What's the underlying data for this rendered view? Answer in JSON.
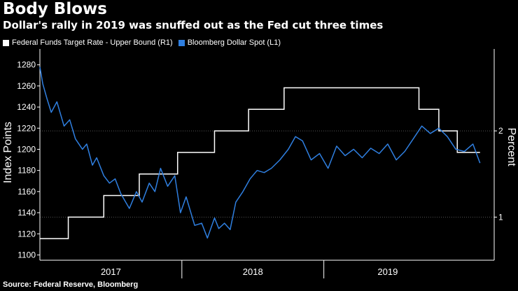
{
  "chart_data": {
    "type": "line",
    "title": "Body Blows",
    "subtitle": "Dollar's rally in 2019 was snuffed out as the Fed cut three times",
    "ylabel": "Index Points",
    "y2label": "Percent",
    "ylim": [
      1095,
      1295
    ],
    "y2lim": [
      0.5,
      2.95
    ],
    "yticks": [
      "1100",
      "1120",
      "1140",
      "1160",
      "1180",
      "1200",
      "1220",
      "1240",
      "1260",
      "1280"
    ],
    "y2ticks": [
      "1",
      "2"
    ],
    "x_start": 2016.75,
    "x_end": 2019.95,
    "xticks": [
      {
        "label": "2017",
        "pos": 2017.25
      },
      {
        "label": "2018",
        "pos": 2018.25
      },
      {
        "label": "2019",
        "pos": 2019.2
      }
    ],
    "year_boundaries": [
      2017.75,
      2018.75
    ],
    "series": [
      {
        "name": "Federal Funds Target Rate - Upper Bound  (R1)",
        "axis": "right",
        "color": "#ffffff",
        "step_x": [
          2016.75,
          2016.95,
          2017.2,
          2017.45,
          2017.72,
          2017.98,
          2018.22,
          2018.47,
          2018.73,
          2019.42,
          2019.56,
          2019.69,
          2019.85
        ],
        "step_y": [
          0.75,
          1.0,
          1.25,
          1.5,
          1.75,
          2.0,
          2.25,
          2.5,
          2.5,
          2.25,
          2.0,
          1.75,
          1.75
        ]
      },
      {
        "name": "Bloomberg Dollar Spot  (L1)",
        "axis": "left",
        "color": "#2f7fe0",
        "x": [
          2016.75,
          2016.77,
          2016.8,
          2016.83,
          2016.87,
          2016.92,
          2016.96,
          2017.0,
          2017.05,
          2017.08,
          2017.12,
          2017.15,
          2017.2,
          2017.24,
          2017.28,
          2017.32,
          2017.38,
          2017.43,
          2017.47,
          2017.52,
          2017.56,
          2017.6,
          2017.65,
          2017.7,
          2017.74,
          2017.78,
          2017.84,
          2017.89,
          2017.93,
          2017.98,
          2018.01,
          2018.05,
          2018.09,
          2018.13,
          2018.18,
          2018.23,
          2018.28,
          2018.33,
          2018.38,
          2018.44,
          2018.5,
          2018.55,
          2018.6,
          2018.66,
          2018.72,
          2018.78,
          2018.84,
          2018.9,
          2018.96,
          2019.02,
          2019.08,
          2019.14,
          2019.2,
          2019.26,
          2019.32,
          2019.38,
          2019.44,
          2019.5,
          2019.56,
          2019.62,
          2019.68,
          2019.74,
          2019.8,
          2019.85
        ],
        "y": [
          1278,
          1262,
          1248,
          1235,
          1245,
          1222,
          1228,
          1210,
          1200,
          1205,
          1185,
          1192,
          1175,
          1168,
          1172,
          1158,
          1144,
          1160,
          1150,
          1168,
          1160,
          1182,
          1165,
          1175,
          1140,
          1155,
          1128,
          1130,
          1116,
          1135,
          1125,
          1130,
          1124,
          1150,
          1160,
          1172,
          1180,
          1178,
          1182,
          1190,
          1200,
          1212,
          1208,
          1190,
          1196,
          1182,
          1203,
          1194,
          1200,
          1192,
          1201,
          1196,
          1205,
          1190,
          1198,
          1210,
          1222,
          1215,
          1220,
          1212,
          1200,
          1198,
          1205,
          1187
        ]
      }
    ]
  },
  "source": "Source: Federal Reserve, Bloomberg"
}
